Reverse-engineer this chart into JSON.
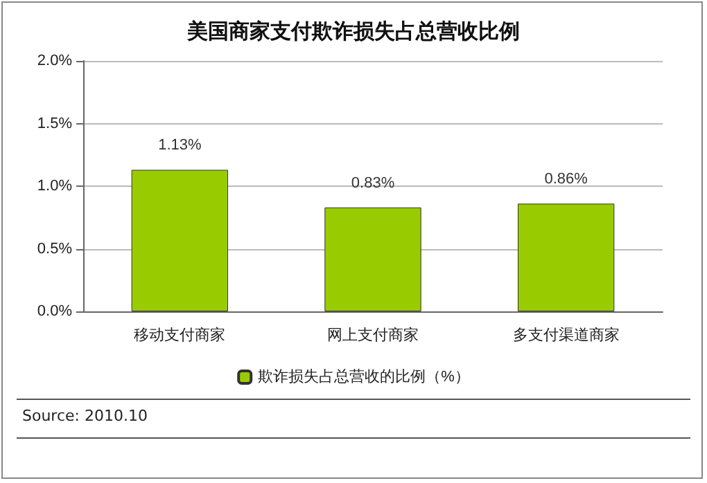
{
  "chart_data": {
    "type": "bar",
    "title": "美国商家支付欺诈损失占总营收比例",
    "categories": [
      "移动支付商家",
      "网上支付商家",
      "多支付渠道商家"
    ],
    "series": [
      {
        "name": "欺诈损失占总营收的比例（%）",
        "color": "#99cc00",
        "values": [
          1.13,
          0.83,
          0.86
        ],
        "value_labels": [
          "1.13%",
          "0.83%",
          "0.86%"
        ]
      }
    ],
    "ylim": [
      0,
      2
    ],
    "yticks": [
      {
        "value": 0,
        "label": "0.0%"
      },
      {
        "value": 0.5,
        "label": "0.5%"
      },
      {
        "value": 1,
        "label": "1.0%"
      },
      {
        "value": 1.5,
        "label": "1.5%"
      },
      {
        "value": 2,
        "label": "2.0%"
      }
    ],
    "grid": "y",
    "legend": "bottom",
    "annotations": [
      "Source: 2010.10"
    ]
  }
}
